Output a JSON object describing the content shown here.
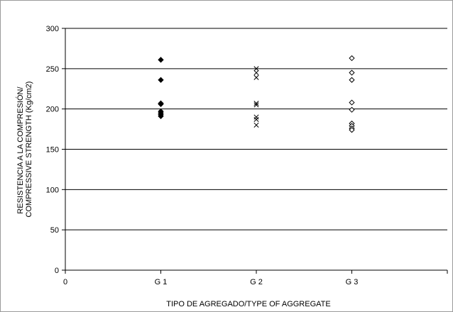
{
  "chart_data": {
    "type": "scatter",
    "xlabel": "TIPO DE AGREGADO/TYPE OF AGGREGATE",
    "ylabel_lines": [
      "RESISTENCIA A LA COMPRESIÓN/",
      "COMPRESSIVE STRENGTH (Kg/cm2)"
    ],
    "x_ticks": [
      {
        "value": 0,
        "label": "0"
      },
      {
        "value": 1,
        "label": "G 1"
      },
      {
        "value": 2,
        "label": "G 2"
      },
      {
        "value": 3,
        "label": "G 3"
      }
    ],
    "xlim": [
      0,
      4
    ],
    "ylim": [
      0,
      300
    ],
    "y_ticks": [
      0,
      50,
      100,
      150,
      200,
      250,
      300
    ],
    "grid": "horizontal",
    "series": [
      {
        "marker": "diamond-filled",
        "color": "#000000",
        "x": 1,
        "values": [
          261,
          236,
          207,
          206,
          197,
          195,
          193,
          191
        ]
      },
      {
        "marker": "x",
        "color": "#000000",
        "x": 2,
        "values": [
          250,
          245,
          239,
          207,
          205,
          190,
          187,
          180
        ]
      },
      {
        "marker": "diamond-open",
        "color": "#000000",
        "x": 3,
        "values": [
          263,
          245,
          236,
          208,
          199,
          182,
          179,
          176,
          174
        ]
      }
    ]
  }
}
